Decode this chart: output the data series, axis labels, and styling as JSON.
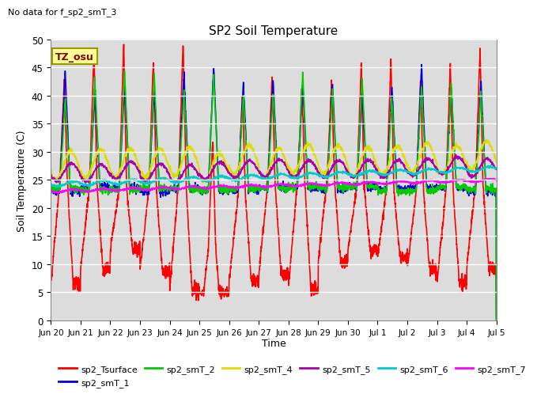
{
  "title": "SP2 Soil Temperature",
  "no_data_text": "No data for f_sp2_smT_3",
  "ylabel": "Soil Temperature (C)",
  "xlabel": "Time",
  "timezone_label": "TZ_osu",
  "ylim": [
    0,
    50
  ],
  "yticks": [
    0,
    5,
    10,
    15,
    20,
    25,
    30,
    35,
    40,
    45,
    50
  ],
  "background_color": "#dcdcdc",
  "fig_background": "#ffffff",
  "grid_color": "#ffffff",
  "series": [
    {
      "name": "sp2_Tsurface",
      "color": "#ff0000",
      "lw": 1.2
    },
    {
      "name": "sp2_smT_1",
      "color": "#0000dd",
      "lw": 1.2
    },
    {
      "name": "sp2_smT_2",
      "color": "#00cc00",
      "lw": 1.2
    },
    {
      "name": "sp2_smT_4",
      "color": "#dddd00",
      "lw": 1.2
    },
    {
      "name": "sp2_smT_5",
      "color": "#aa00aa",
      "lw": 1.2
    },
    {
      "name": "sp2_smT_6",
      "color": "#00cccc",
      "lw": 1.2
    },
    {
      "name": "sp2_smT_7",
      "color": "#ff00ff",
      "lw": 1.2
    }
  ],
  "x_tick_labels": [
    "Jun 20",
    "Jun 21",
    "Jun 22",
    "Jun 23",
    "Jun 24",
    "Jun 25",
    "Jun 26",
    "Jun 27",
    "Jun 28",
    "Jun 29",
    "Jun 30",
    "Jul 1",
    "Jul 2",
    "Jul 3",
    "Jul 4",
    "Jul 5"
  ],
  "n_days": 15,
  "pts_per_day": 144
}
